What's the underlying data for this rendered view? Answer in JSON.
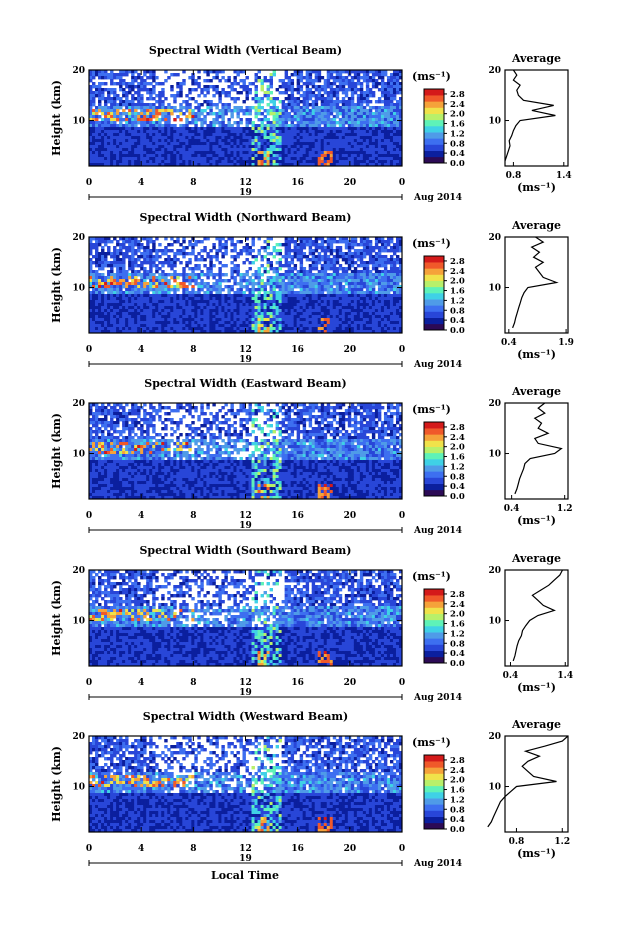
{
  "colors": {
    "colormap": [
      "#2c0a55",
      "#0b1f9e",
      "#2846d8",
      "#3d6ff0",
      "#4f9be8",
      "#3fd1e6",
      "#5ef2b8",
      "#b8f06a",
      "#f0e24a",
      "#f5a23a",
      "#f0592a",
      "#d41a1a"
    ],
    "line": "#000000",
    "background": "#ffffff"
  },
  "footer": {
    "x_title": "Local Time"
  },
  "chart_data": [
    {
      "type": "heatmap",
      "title": "Spectral Width (Vertical Beam)",
      "ylabel": "Height (km)",
      "yticks": [
        "20",
        "10"
      ],
      "xticks": [
        "0",
        "4",
        "8",
        "12",
        "16",
        "20",
        "0"
      ],
      "date_day": "19",
      "date_label": "Aug 2014",
      "colorbar_unit": "(ms⁻¹)",
      "colorbar_ticks": [
        "2.8",
        "2.4",
        "2.0",
        "1.6",
        "1.2",
        "0.8",
        "0.4",
        "0.0"
      ],
      "avg_title": "Average",
      "avg_xlabel": "(ms⁻¹)",
      "avg_xticks": [
        "0.8",
        "1.4"
      ],
      "avg_yticks": [
        "20",
        "10"
      ],
      "avg_profile": [
        [
          0.7,
          2
        ],
        [
          0.72,
          3
        ],
        [
          0.74,
          4
        ],
        [
          0.76,
          5
        ],
        [
          0.75,
          6
        ],
        [
          0.78,
          7
        ],
        [
          0.8,
          8
        ],
        [
          0.83,
          9
        ],
        [
          0.88,
          10
        ],
        [
          1.3,
          11
        ],
        [
          1.02,
          12
        ],
        [
          1.28,
          13
        ],
        [
          0.92,
          14
        ],
        [
          0.86,
          15
        ],
        [
          0.84,
          16
        ],
        [
          0.88,
          17
        ],
        [
          0.8,
          18
        ],
        [
          0.84,
          19
        ],
        [
          0.8,
          20
        ]
      ]
    },
    {
      "type": "heatmap",
      "title": "Spectral Width (Northward Beam)",
      "ylabel": "Height (km)",
      "yticks": [
        "20",
        "10"
      ],
      "xticks": [
        "0",
        "4",
        "8",
        "12",
        "16",
        "20",
        "0"
      ],
      "date_day": "19",
      "date_label": "Aug 2014",
      "colorbar_unit": "(ms⁻¹)",
      "colorbar_ticks": [
        "2.8",
        "2.4",
        "2.0",
        "1.6",
        "1.2",
        "0.8",
        "0.4",
        "0.0"
      ],
      "avg_title": "Average",
      "avg_xlabel": "(ms⁻¹)",
      "avg_xticks": [
        "0.4",
        "1.9"
      ],
      "avg_yticks": [
        "20",
        "10"
      ],
      "avg_profile": [
        [
          0.5,
          2
        ],
        [
          0.55,
          3
        ],
        [
          0.58,
          4
        ],
        [
          0.62,
          5
        ],
        [
          0.66,
          6
        ],
        [
          0.7,
          7
        ],
        [
          0.74,
          8
        ],
        [
          0.8,
          9
        ],
        [
          0.9,
          10
        ],
        [
          1.65,
          11
        ],
        [
          1.3,
          12
        ],
        [
          1.2,
          13
        ],
        [
          1.1,
          14
        ],
        [
          1.3,
          15
        ],
        [
          1.05,
          16
        ],
        [
          1.2,
          17
        ],
        [
          1.0,
          18
        ],
        [
          1.3,
          19
        ],
        [
          1.1,
          20
        ]
      ]
    },
    {
      "type": "heatmap",
      "title": "Spectral Width (Eastward Beam)",
      "ylabel": "Height (km)",
      "yticks": [
        "20",
        "10"
      ],
      "xticks": [
        "0",
        "4",
        "8",
        "12",
        "16",
        "20",
        "0"
      ],
      "date_day": "19",
      "date_label": "Aug 2014",
      "colorbar_unit": "(ms⁻¹)",
      "colorbar_ticks": [
        "2.8",
        "2.4",
        "2.0",
        "1.6",
        "1.2",
        "0.8",
        "0.4",
        "0.0"
      ],
      "avg_title": "Average",
      "avg_xlabel": "(ms⁻¹)",
      "avg_xticks": [
        "0.4",
        "1.2"
      ],
      "avg_yticks": [
        "20",
        "10"
      ],
      "avg_profile": [
        [
          0.45,
          2
        ],
        [
          0.48,
          3
        ],
        [
          0.5,
          4
        ],
        [
          0.52,
          5
        ],
        [
          0.55,
          6
        ],
        [
          0.58,
          7
        ],
        [
          0.6,
          8
        ],
        [
          0.68,
          9
        ],
        [
          1.05,
          10
        ],
        [
          1.15,
          11
        ],
        [
          0.8,
          12
        ],
        [
          0.75,
          13
        ],
        [
          0.95,
          14
        ],
        [
          0.8,
          15
        ],
        [
          0.85,
          16
        ],
        [
          0.75,
          17
        ],
        [
          0.9,
          18
        ],
        [
          0.8,
          19
        ],
        [
          0.9,
          20
        ]
      ]
    },
    {
      "type": "heatmap",
      "title": "Spectral Width (Southward Beam)",
      "ylabel": "Height (km)",
      "yticks": [
        "20",
        "10"
      ],
      "xticks": [
        "0",
        "4",
        "8",
        "12",
        "16",
        "20",
        "0"
      ],
      "date_day": "19",
      "date_label": "Aug 2014",
      "colorbar_unit": "(ms⁻¹)",
      "colorbar_ticks": [
        "2.8",
        "2.4",
        "2.0",
        "1.6",
        "1.2",
        "0.8",
        "0.4",
        "0.0"
      ],
      "avg_title": "Average",
      "avg_xlabel": "(ms⁻¹)",
      "avg_xticks": [
        "0.4",
        "1.4"
      ],
      "avg_yticks": [
        "20",
        "10"
      ],
      "avg_profile": [
        [
          0.45,
          2
        ],
        [
          0.48,
          3
        ],
        [
          0.5,
          4
        ],
        [
          0.52,
          5
        ],
        [
          0.55,
          6
        ],
        [
          0.6,
          7
        ],
        [
          0.62,
          8
        ],
        [
          0.68,
          9
        ],
        [
          0.75,
          10
        ],
        [
          0.9,
          11
        ],
        [
          1.2,
          12
        ],
        [
          1.0,
          13
        ],
        [
          0.9,
          14
        ],
        [
          0.8,
          15
        ],
        [
          0.95,
          16
        ],
        [
          1.1,
          17
        ],
        [
          1.2,
          18
        ],
        [
          1.3,
          19
        ],
        [
          1.35,
          20
        ]
      ]
    },
    {
      "type": "heatmap",
      "title": "Spectral Width (Westward Beam)",
      "ylabel": "Height (km)",
      "yticks": [
        "20",
        "10"
      ],
      "xticks": [
        "0",
        "4",
        "8",
        "12",
        "16",
        "20",
        "0"
      ],
      "date_day": "19",
      "date_label": "Aug 2014",
      "colorbar_unit": "(ms⁻¹)",
      "colorbar_ticks": [
        "2.8",
        "2.4",
        "2.0",
        "1.6",
        "1.2",
        "0.8",
        "0.4",
        "0.0"
      ],
      "avg_title": "Average",
      "avg_xlabel": "(ms⁻¹)",
      "avg_xticks": [
        "0.8",
        "1.2"
      ],
      "avg_yticks": [
        "20",
        "10"
      ],
      "avg_profile": [
        [
          0.55,
          2
        ],
        [
          0.58,
          3
        ],
        [
          0.6,
          4
        ],
        [
          0.62,
          5
        ],
        [
          0.64,
          6
        ],
        [
          0.66,
          7
        ],
        [
          0.7,
          8
        ],
        [
          0.75,
          9
        ],
        [
          0.8,
          10
        ],
        [
          1.15,
          11
        ],
        [
          0.95,
          12
        ],
        [
          0.9,
          13
        ],
        [
          0.85,
          14
        ],
        [
          0.9,
          15
        ],
        [
          1.0,
          16
        ],
        [
          0.88,
          17
        ],
        [
          1.05,
          18
        ],
        [
          1.2,
          19
        ],
        [
          1.25,
          20
        ]
      ]
    }
  ]
}
